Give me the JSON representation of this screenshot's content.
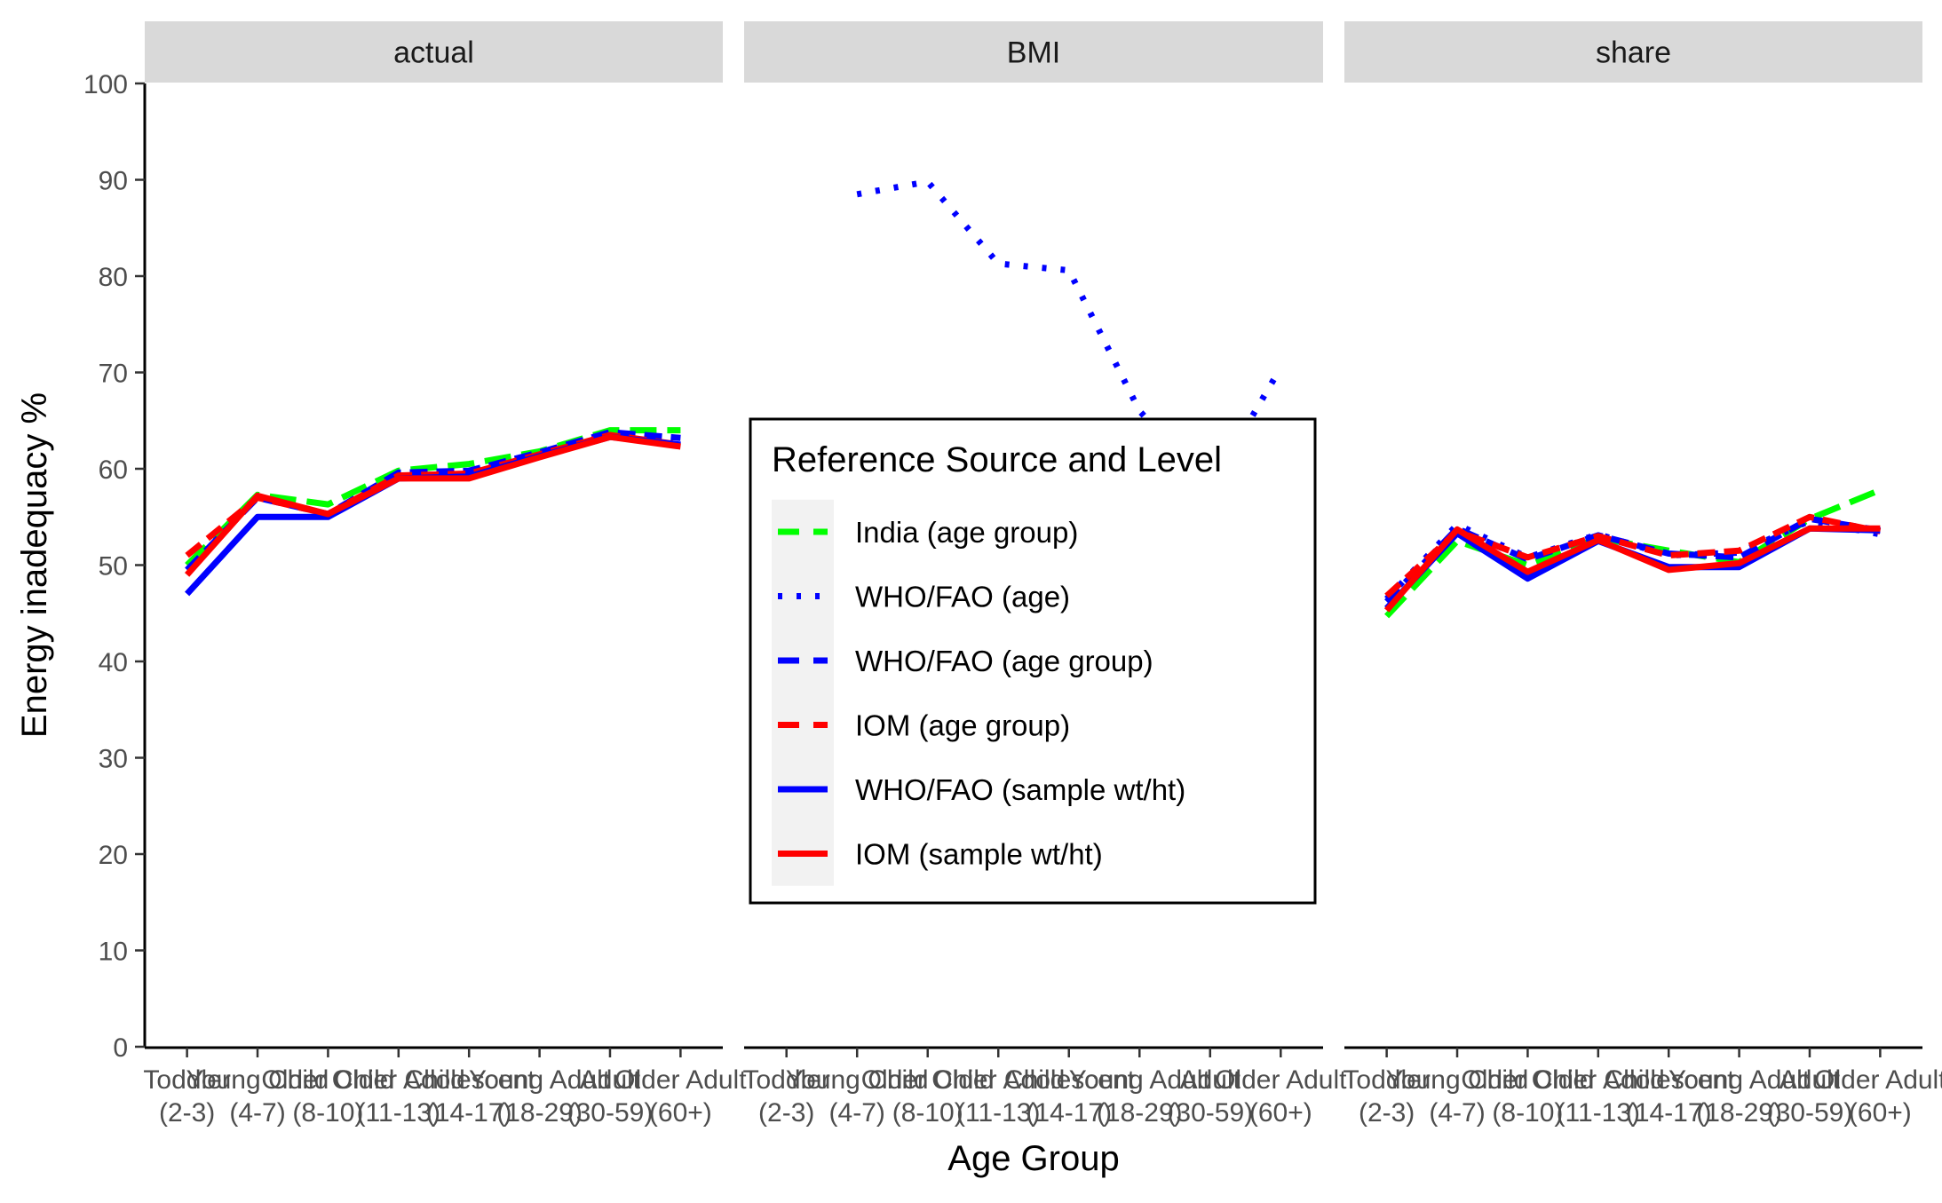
{
  "chart_data": {
    "type": "line",
    "facets": [
      "actual",
      "BMI",
      "share"
    ],
    "categories": [
      "Toddler\n(2-3)",
      "Young Child\n(4-7)",
      "Older Child\n(8-10)",
      "Older Child\n(11-13)",
      "Adolescent\n(14-17)",
      "Young Adult\n(18-29)",
      "Adult\n(30-59)",
      "Older Adult\n(60+)"
    ],
    "xlabel": "Age Group",
    "ylabel": "Energy inadequacy %",
    "ylim": [
      0,
      100
    ],
    "yticks": [
      0,
      10,
      20,
      30,
      40,
      50,
      60,
      70,
      80,
      90,
      100
    ],
    "grid": false,
    "legend": {
      "title": "Reference Source and Level",
      "placement": "center"
    },
    "series": [
      {
        "name": "India (age group)",
        "color": "#00ff00",
        "dash": "longdash",
        "facets": {
          "actual": [
            50,
            57.3,
            56.3,
            59.8,
            60.5,
            61.8,
            64,
            64
          ],
          "BMI": [
            null,
            null,
            null,
            null,
            null,
            null,
            null,
            null
          ],
          "share": [
            44.7,
            52.5,
            50,
            52.8,
            51.5,
            50.3,
            54.8,
            57.8
          ]
        }
      },
      {
        "name": "WHO/FAO (age)",
        "color": "#0000ff",
        "dash": "dotted",
        "facets": {
          "actual": [
            null,
            null,
            null,
            null,
            null,
            null,
            null,
            null
          ],
          "BMI": [
            null,
            88.5,
            89.8,
            81.3,
            80.6,
            66,
            58,
            70.5
          ],
          "share": [
            46.5,
            54.2,
            50.8,
            53.2,
            51,
            51.3,
            54.6,
            53.2
          ]
        }
      },
      {
        "name": "WHO/FAO (age group)",
        "color": "#0000ff",
        "dash": "dashed",
        "facets": {
          "actual": [
            49.5,
            57,
            55.3,
            59.6,
            59.8,
            61.7,
            63.8,
            63.2
          ],
          "BMI": [
            null,
            null,
            null,
            null,
            null,
            null,
            null,
            null
          ],
          "share": [
            46.2,
            53.8,
            50.6,
            53.1,
            51.2,
            50.8,
            54.8,
            53.6
          ]
        }
      },
      {
        "name": "IOM (age group)",
        "color": "#ff0000",
        "dash": "dashed",
        "facets": {
          "actual": [
            51,
            57,
            55.3,
            59.3,
            59.5,
            61.5,
            63.5,
            62.5
          ],
          "BMI": [
            null,
            null,
            null,
            null,
            null,
            null,
            null,
            null
          ],
          "share": [
            46.8,
            53.5,
            50.8,
            53,
            51,
            51.5,
            55,
            53.5
          ]
        }
      },
      {
        "name": "WHO/FAO (sample wt/ht)",
        "color": "#0000ff",
        "dash": "solid",
        "facets": {
          "actual": [
            47,
            55,
            55,
            59,
            59.2,
            61.3,
            63.3,
            62.5
          ],
          "BMI": [
            null,
            null,
            null,
            null,
            null,
            null,
            null,
            null
          ],
          "share": [
            45.5,
            53.3,
            48.6,
            52.5,
            49.8,
            49.8,
            53.8,
            53.6
          ]
        }
      },
      {
        "name": "IOM (sample wt/ht)",
        "color": "#ff0000",
        "dash": "solid",
        "facets": {
          "actual": [
            49,
            57.2,
            55.3,
            59,
            59,
            61.2,
            63.3,
            62.3
          ],
          "BMI": [
            null,
            null,
            null,
            null,
            null,
            null,
            null,
            null
          ],
          "share": [
            45.3,
            53.7,
            49.3,
            52.6,
            49.5,
            50.2,
            53.8,
            53.8
          ]
        }
      }
    ]
  }
}
